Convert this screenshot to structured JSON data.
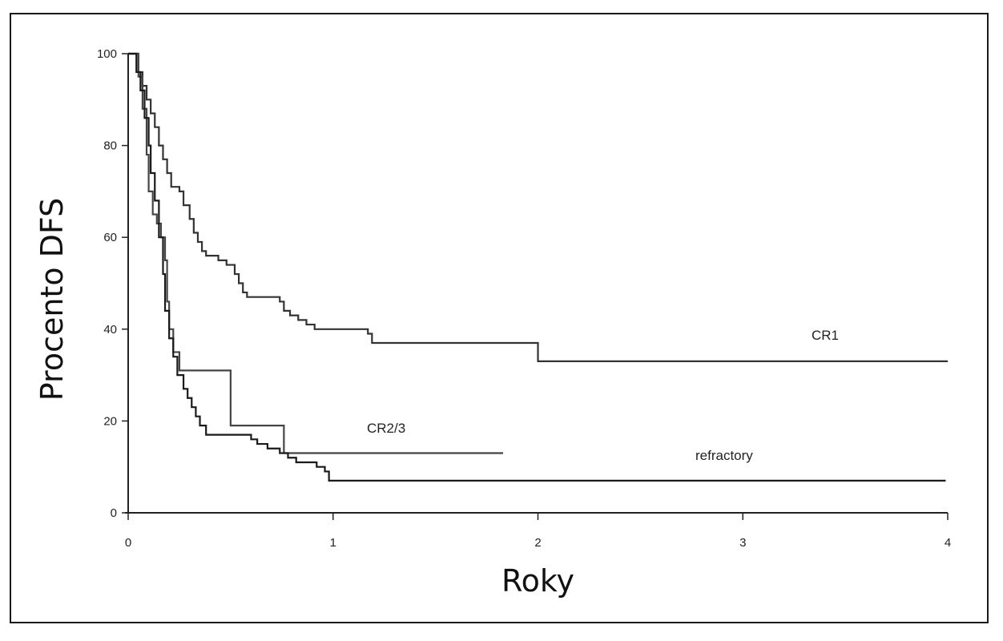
{
  "chart_data": {
    "type": "line",
    "step": true,
    "xlabel": "Roky",
    "ylabel": "Procento DFS",
    "xlim": [
      0,
      4
    ],
    "ylim": [
      0,
      100
    ],
    "xticks": [
      0,
      1,
      2,
      3,
      4
    ],
    "yticks": [
      0,
      20,
      40,
      60,
      80,
      100
    ],
    "grid": false,
    "legend": "inline labels",
    "series": [
      {
        "name": "CR1",
        "color": "#333333",
        "points": [
          [
            0,
            100
          ],
          [
            0.04,
            100
          ],
          [
            0.05,
            96
          ],
          [
            0.07,
            93
          ],
          [
            0.09,
            90
          ],
          [
            0.11,
            87
          ],
          [
            0.13,
            84
          ],
          [
            0.15,
            80
          ],
          [
            0.17,
            77
          ],
          [
            0.19,
            74
          ],
          [
            0.21,
            71
          ],
          [
            0.25,
            70
          ],
          [
            0.27,
            67
          ],
          [
            0.3,
            64
          ],
          [
            0.32,
            61
          ],
          [
            0.34,
            59
          ],
          [
            0.36,
            57
          ],
          [
            0.38,
            56
          ],
          [
            0.44,
            55
          ],
          [
            0.48,
            54
          ],
          [
            0.52,
            52
          ],
          [
            0.54,
            50
          ],
          [
            0.56,
            48
          ],
          [
            0.58,
            47
          ],
          [
            0.74,
            46
          ],
          [
            0.76,
            44
          ],
          [
            0.79,
            43
          ],
          [
            0.83,
            42
          ],
          [
            0.87,
            41
          ],
          [
            0.91,
            40
          ],
          [
            1.17,
            39
          ],
          [
            1.19,
            37
          ],
          [
            1.99,
            37
          ],
          [
            2.0,
            33
          ],
          [
            4.0,
            33
          ]
        ]
      },
      {
        "name": "CR2/3",
        "color": "#444444",
        "points": [
          [
            0,
            100
          ],
          [
            0.04,
            100
          ],
          [
            0.05,
            95
          ],
          [
            0.07,
            88
          ],
          [
            0.09,
            78
          ],
          [
            0.1,
            70
          ],
          [
            0.12,
            65
          ],
          [
            0.14,
            63
          ],
          [
            0.16,
            60
          ],
          [
            0.18,
            55
          ],
          [
            0.19,
            46
          ],
          [
            0.2,
            40
          ],
          [
            0.22,
            35
          ],
          [
            0.25,
            31
          ],
          [
            0.49,
            31
          ],
          [
            0.5,
            19
          ],
          [
            0.75,
            19
          ],
          [
            0.76,
            13
          ],
          [
            1.83,
            13
          ]
        ]
      },
      {
        "name": "refractory",
        "color": "#1a1a1a",
        "points": [
          [
            0,
            100
          ],
          [
            0.03,
            100
          ],
          [
            0.04,
            96
          ],
          [
            0.06,
            92
          ],
          [
            0.08,
            86
          ],
          [
            0.1,
            80
          ],
          [
            0.11,
            74
          ],
          [
            0.13,
            68
          ],
          [
            0.15,
            60
          ],
          [
            0.17,
            52
          ],
          [
            0.18,
            44
          ],
          [
            0.2,
            38
          ],
          [
            0.22,
            34
          ],
          [
            0.24,
            30
          ],
          [
            0.27,
            27
          ],
          [
            0.29,
            25
          ],
          [
            0.31,
            23
          ],
          [
            0.33,
            21
          ],
          [
            0.35,
            19
          ],
          [
            0.38,
            17
          ],
          [
            0.6,
            16
          ],
          [
            0.63,
            15
          ],
          [
            0.68,
            14
          ],
          [
            0.74,
            13
          ],
          [
            0.78,
            12
          ],
          [
            0.82,
            11
          ],
          [
            0.92,
            10
          ],
          [
            0.96,
            9
          ],
          [
            0.98,
            7
          ],
          [
            3.99,
            7
          ]
        ]
      }
    ]
  }
}
